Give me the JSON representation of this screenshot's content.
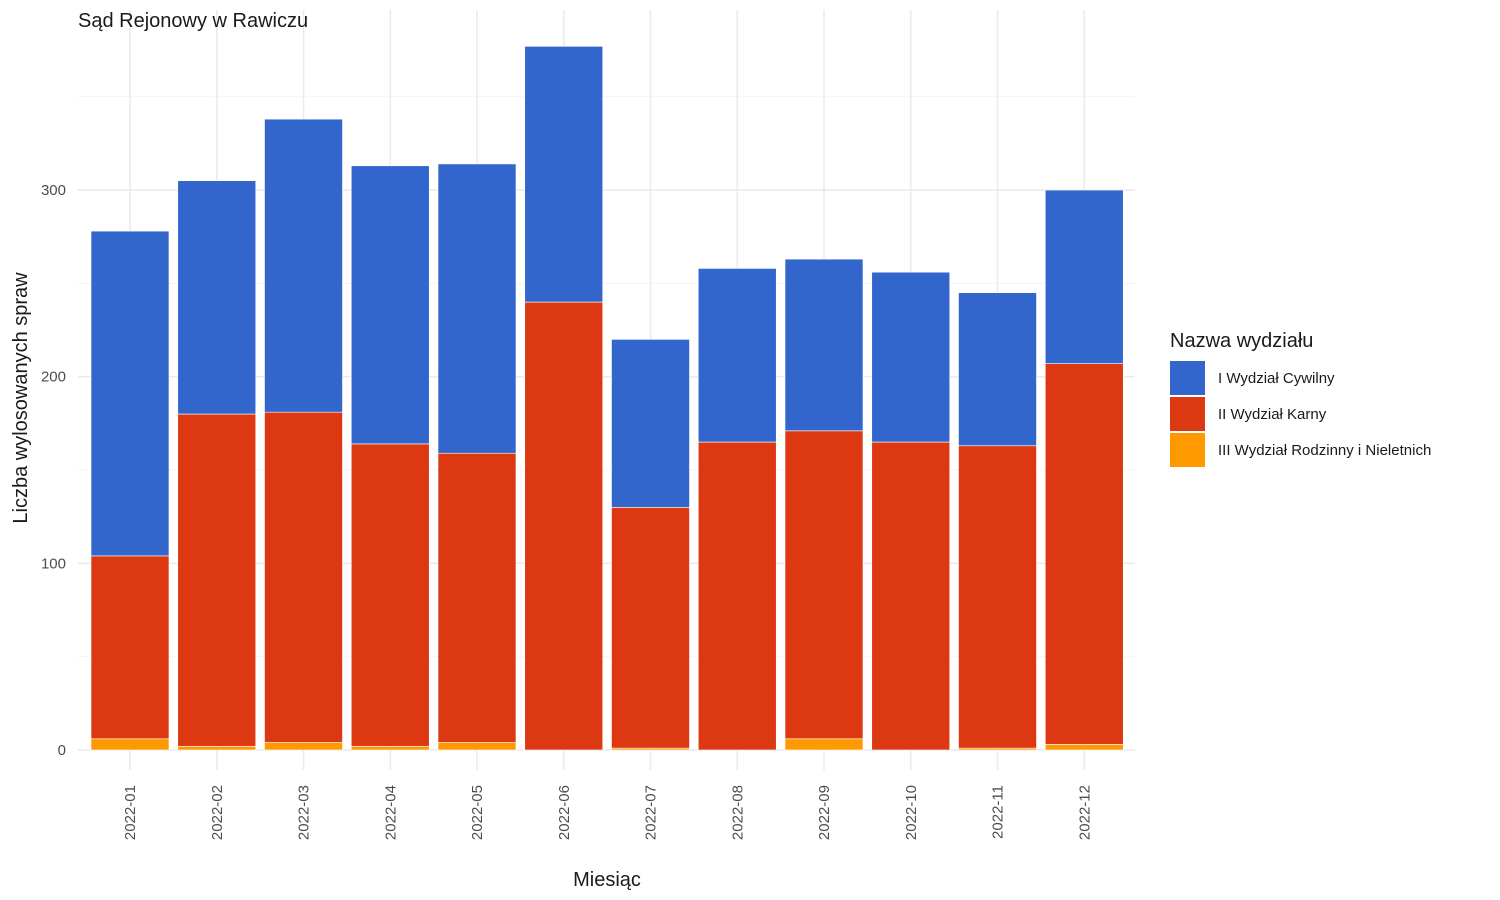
{
  "chart_data": {
    "type": "bar",
    "stacked": true,
    "title": "Sąd Rejonowy w Rawiczu",
    "xlabel": "Miesiąc",
    "ylabel": "Liczba wylosowanych spraw",
    "categories": [
      "2022-01",
      "2022-02",
      "2022-03",
      "2022-04",
      "2022-05",
      "2022-06",
      "2022-07",
      "2022-08",
      "2022-09",
      "2022-10",
      "2022-11",
      "2022-12"
    ],
    "ylim": [
      0,
      380
    ],
    "y_ticks": [
      0,
      100,
      200,
      300
    ],
    "grid": true,
    "legend": {
      "title": "Nazwa wydziału",
      "position": "right"
    },
    "series": [
      {
        "name": "III Wydział Rodzinny i Nieletnich",
        "color": "#FF9900",
        "values": [
          6,
          2,
          4,
          2,
          4,
          0,
          1,
          0,
          6,
          0,
          1,
          3
        ]
      },
      {
        "name": "II Wydział Karny",
        "color": "#DC3912",
        "values": [
          98,
          178,
          177,
          162,
          155,
          240,
          129,
          165,
          165,
          165,
          162,
          204
        ]
      },
      {
        "name": "I Wydział Cywilny",
        "color": "#3366CC",
        "values": [
          174,
          125,
          157,
          149,
          155,
          137,
          90,
          93,
          92,
          91,
          82,
          93
        ]
      }
    ],
    "legend_order": [
      "I Wydział Cywilny",
      "II Wydział Karny",
      "III Wydział Rodzinny i Nieletnich"
    ]
  }
}
